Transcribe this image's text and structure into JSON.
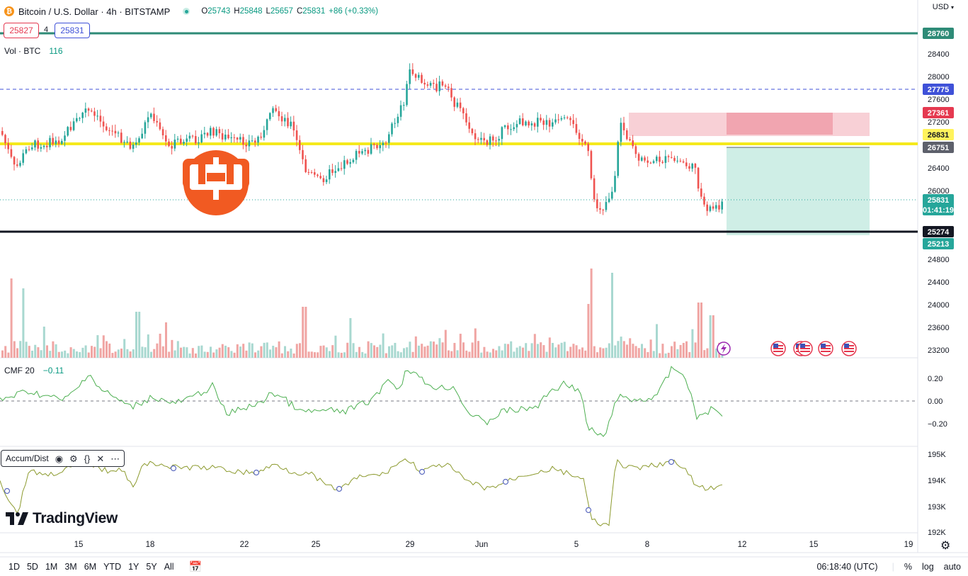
{
  "header": {
    "symbol_title": "Bitcoin / U.S. Dollar · 4h · BITSTAMP",
    "ohlc": [
      {
        "k": "O",
        "v": "25743"
      },
      {
        "k": "H",
        "v": "25848"
      },
      {
        "k": "L",
        "v": "25657"
      },
      {
        "k": "C",
        "v": "25831"
      },
      {
        "k": "",
        "v": "+86 (+0.33%)"
      }
    ],
    "sell_price": "25827",
    "spread": "4",
    "buy_price": "25831",
    "currency": "USD"
  },
  "indicators": {
    "volume_label": "Vol · BTC",
    "volume_value": "116",
    "cmf_label": "CMF 20",
    "cmf_value": "−0.11",
    "accum_label": "Accum/Dist"
  },
  "price_axis": {
    "ticks": [
      "28400",
      "28000",
      "27600",
      "27200",
      "26400",
      "26000",
      "24800",
      "24400",
      "24000",
      "23600",
      "23200"
    ],
    "labels": [
      {
        "text": "28760",
        "bg": "#2e8b77",
        "fg": "#ffffff"
      },
      {
        "text": "27775",
        "bg": "#3f51d8",
        "fg": "#ffffff"
      },
      {
        "text": "27361",
        "bg": "#e53950",
        "fg": "#ffffff"
      },
      {
        "text": "26831",
        "bg": "#fff35c",
        "fg": "#131722"
      },
      {
        "text": "26751",
        "bg": "#5d606b",
        "fg": "#ffffff"
      },
      {
        "text": "25831",
        "bg": "#26a69a",
        "fg": "#ffffff"
      },
      {
        "text": "01:41:19",
        "bg": "#26a69a",
        "fg": "#ffffff"
      },
      {
        "text": "25274",
        "bg": "#131722",
        "fg": "#ffffff"
      },
      {
        "text": "25213",
        "bg": "#26a69a",
        "fg": "#ffffff"
      }
    ]
  },
  "cmf_axis": [
    "0.20",
    "0.00",
    "−0.20"
  ],
  "ad_axis": [
    "195K",
    "194K",
    "193K",
    "192K"
  ],
  "time_axis": [
    "15",
    "18",
    "22",
    "25",
    "29",
    "Jun",
    "5",
    "8",
    "12",
    "15",
    "19"
  ],
  "timeframes": [
    "1D",
    "5D",
    "1M",
    "3M",
    "6M",
    "YTD",
    "1Y",
    "5Y",
    "All"
  ],
  "clock": "06:18:40 (UTC)",
  "scale_options": [
    "%",
    "log",
    "auto"
  ],
  "brand": "TradingView",
  "colors": {
    "up": "#26a69a",
    "down": "#ef5350",
    "support_yellow": "#f5e91c",
    "resistance_green": "#2e8b77",
    "cmf_line": "#4caf50",
    "ad_line": "#8c9a2e",
    "logo_orange": "#f15a22"
  },
  "icons": [
    "bitcoin-icon",
    "eye-icon",
    "gear-icon",
    "braces-icon",
    "close-icon",
    "more-icon",
    "calendar-range-icon",
    "lightning-icon",
    "us-flag-icon"
  ]
}
